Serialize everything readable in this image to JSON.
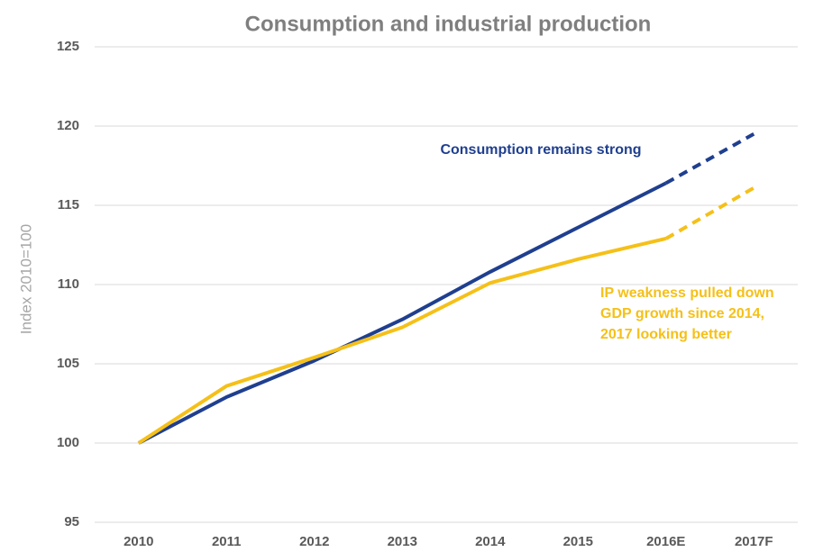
{
  "chart_data": {
    "type": "line",
    "title": "Consumption and industrial production",
    "y_label": "Index 2010=100",
    "categories": [
      "2010",
      "2011",
      "2012",
      "2013",
      "2014",
      "2015",
      "2016E",
      "2017F"
    ],
    "dashed_from": "2016E",
    "series": [
      {
        "name": "Consumption",
        "color": "#1f3f8f",
        "values": [
          100,
          102.9,
          105.2,
          107.8,
          110.8,
          113.6,
          116.4,
          119.5
        ]
      },
      {
        "name": "Industrial production",
        "color": "#f5c018",
        "values": [
          100,
          103.6,
          105.4,
          107.3,
          110.1,
          111.6,
          112.9,
          116.1
        ]
      }
    ],
    "annotations": [
      {
        "lines": [
          "Consumption remains strong"
        ],
        "color": "#1f3f8f"
      },
      {
        "lines": [
          "IP weakness pulled down",
          "GDP growth since 2014,",
          "2017 looking better"
        ],
        "color": "#f5c018"
      }
    ],
    "ylim": [
      95,
      125
    ],
    "yticks": [
      95,
      100,
      105,
      110,
      115,
      120,
      125
    ],
    "grid": true
  }
}
